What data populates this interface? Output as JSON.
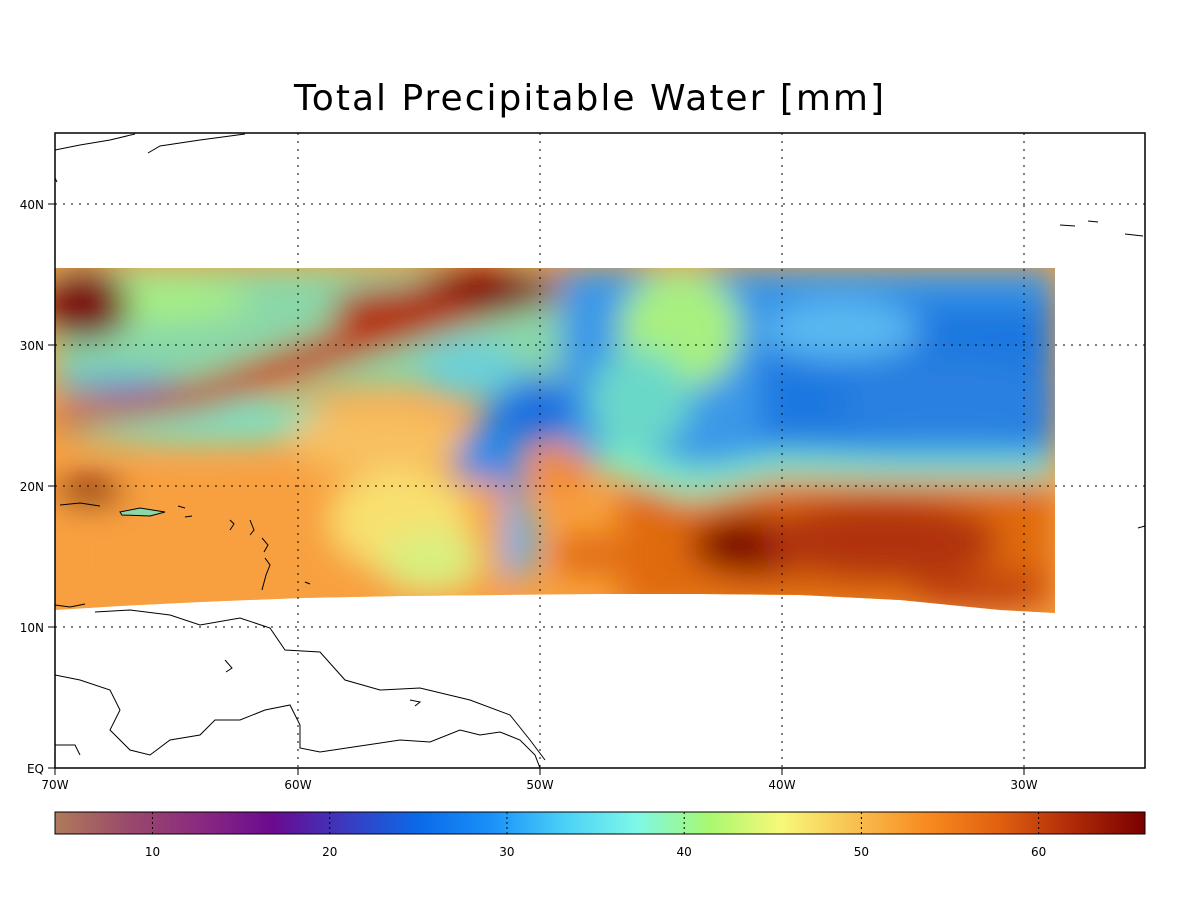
{
  "title": "Total Precipitable Water [mm]",
  "map": {
    "lon_ticks": [
      "70W",
      "60W",
      "50W",
      "40W",
      "30W"
    ],
    "lat_ticks": [
      "EQ",
      "10N",
      "20N",
      "30N",
      "40N"
    ],
    "lon_range": [
      -70,
      -25
    ],
    "lat_range": [
      0,
      45
    ],
    "data_extent": {
      "lon": [
        -70,
        -28.7
      ],
      "lat_north": 35.5
    },
    "grid": "dotted"
  },
  "colorbar": {
    "ticks": [
      "10",
      "20",
      "30",
      "40",
      "50",
      "60"
    ],
    "range": [
      4.5,
      66
    ],
    "stops": [
      "#b07a5a",
      "#9a4a6a",
      "#8a2a80",
      "#6a0a90",
      "#3a3ac0",
      "#0a6ae8",
      "#1a90f8",
      "#4ad0f8",
      "#7ef8e8",
      "#a8f870",
      "#f8f878",
      "#f8c050",
      "#f88a20",
      "#e06010",
      "#b02a08",
      "#7a0000"
    ]
  }
}
